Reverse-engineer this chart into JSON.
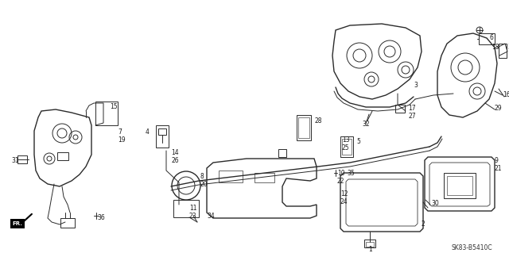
{
  "background_color": "#ffffff",
  "diagram_code": "SK83-B5410C",
  "line_color": "#2a2a2a",
  "label_color": "#1a1a1a",
  "figsize": [
    6.4,
    3.19
  ],
  "dpi": 100
}
